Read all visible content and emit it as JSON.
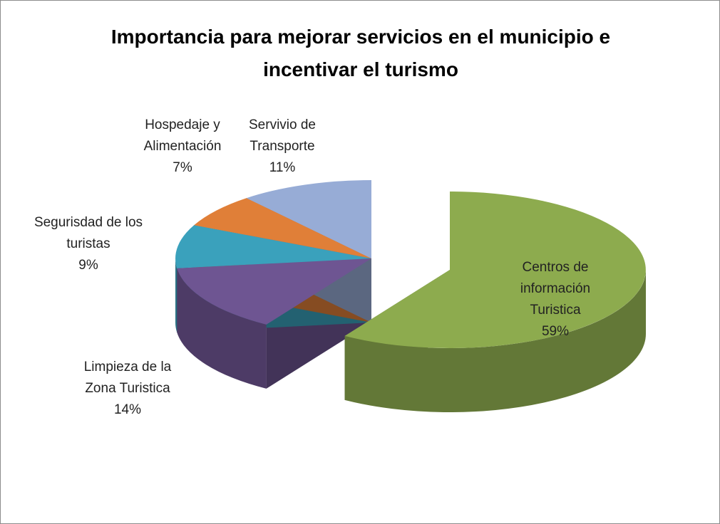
{
  "chart_data": {
    "type": "pie3d",
    "title": "Importancia para mejorar servicios en el municipio e incentivar el turismo",
    "categories": [
      "Centros de información Turistica",
      "Limpieza de la Zona Turistica",
      "Segurisdad de los turistas",
      "Hospedaje y Alimentación",
      "Servivio de Transporte"
    ],
    "values": [
      59,
      14,
      9,
      7,
      11
    ],
    "value_labels": [
      "59%",
      "14%",
      "9%",
      "7%",
      "11%"
    ],
    "colors": [
      "#8dab4e",
      "#6e5592",
      "#3aa1bc",
      "#e07f38",
      "#97acd6"
    ]
  }
}
